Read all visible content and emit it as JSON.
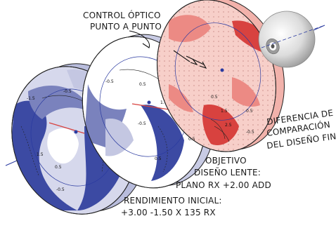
{
  "labels": {
    "optical_control": [
      "CONTROL ÓPTICO",
      "PUNTO A PUNTO"
    ],
    "comparison": [
      "DIFERENCIA DE",
      "COMPARACIÓN",
      "DEL DISEÑO FINAL"
    ],
    "target": [
      "OBJETIVO",
      "DISEÑO LENTE:",
      "PLANO RX +2.00 ADD"
    ],
    "initial": [
      "RENDIMIENTO INICIAL:",
      "+3.00 -1.50 X 135 RX"
    ]
  },
  "contour_values": [
    "-1.5",
    "-0.5",
    "0.5",
    "-0.5",
    "1.5",
    "-0.5",
    "0.5",
    "1.0",
    "-0.5",
    "0.5",
    "0.5",
    "1.5",
    "2.5",
    "0.5",
    "0.5",
    "-0.5"
  ],
  "colors": {
    "blue_dark": "#3c4aa3",
    "blue_mid": "#7a82bd",
    "blue_light": "#c4c7e2",
    "red_dark": "#d8423f",
    "red_mid": "#ec8a84",
    "red_light": "#f7cfc9",
    "axis": "#2a3aa0"
  },
  "icons": [
    "eye-icon",
    "arrow-icon"
  ]
}
